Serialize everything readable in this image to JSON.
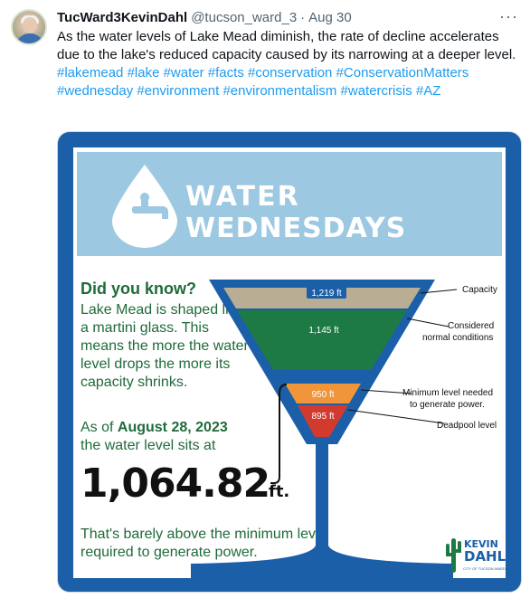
{
  "tweet": {
    "display_name": "TucWard3KevinDahl",
    "handle": "@tucson_ward_3",
    "separator": "·",
    "time": "Aug 30",
    "more": "···",
    "text": "As the water levels of Lake Mead diminish, the rate of decline accelerates due to the lake's reduced capacity caused by its narrowing at a deeper level.",
    "hashtags": [
      "#lakemead",
      "#lake",
      "#water",
      "#facts",
      "#conservation",
      "#ConservationMatters",
      "#wednesday",
      "#environment",
      "#environmentalism",
      "#watercrisis",
      "#AZ"
    ]
  },
  "infographic": {
    "banner_line1": "WATER",
    "banner_line2": "WEDNESDAYS",
    "did_you_know": "Did you know?",
    "body": "Lake Mead is shaped like a martini glass. This means the more the water level drops the more its capacity shrinks.",
    "asof_prefix": "As of ",
    "asof_date": "August 28, 2023",
    "asof_suffix": "the water level sits at",
    "level_value": "1,064.82",
    "level_unit": "ft.",
    "barely": "That's barely above the minimum level required to generate power.",
    "glass": {
      "capacity_value": "1,219 ft",
      "normal_value": "1,145 ft",
      "minimum_value": "950 ft",
      "deadpool_value": "895 ft",
      "capacity_label": "Capacity",
      "normal_label_1": "Considered",
      "normal_label_2": "normal conditions",
      "minimum_label_1": "Minimum level needed",
      "minimum_label_2": "to generate power.",
      "deadpool_label": "Deadpool level"
    },
    "logo_line1": "KEVIN",
    "logo_line2": "DAHL",
    "logo_sub": "CITY OF TUCSON WARD 3",
    "colors": {
      "frame_blue": "#1b5fa8",
      "banner_blue": "#9cc8e2",
      "capacity_tan": "#b9ad93",
      "normal_green": "#1e7a45",
      "minimum_orange": "#f0953a",
      "deadpool_red": "#d23a2e",
      "text_green": "#1f6b3a",
      "hashtag_blue": "#1d9bf0"
    }
  }
}
